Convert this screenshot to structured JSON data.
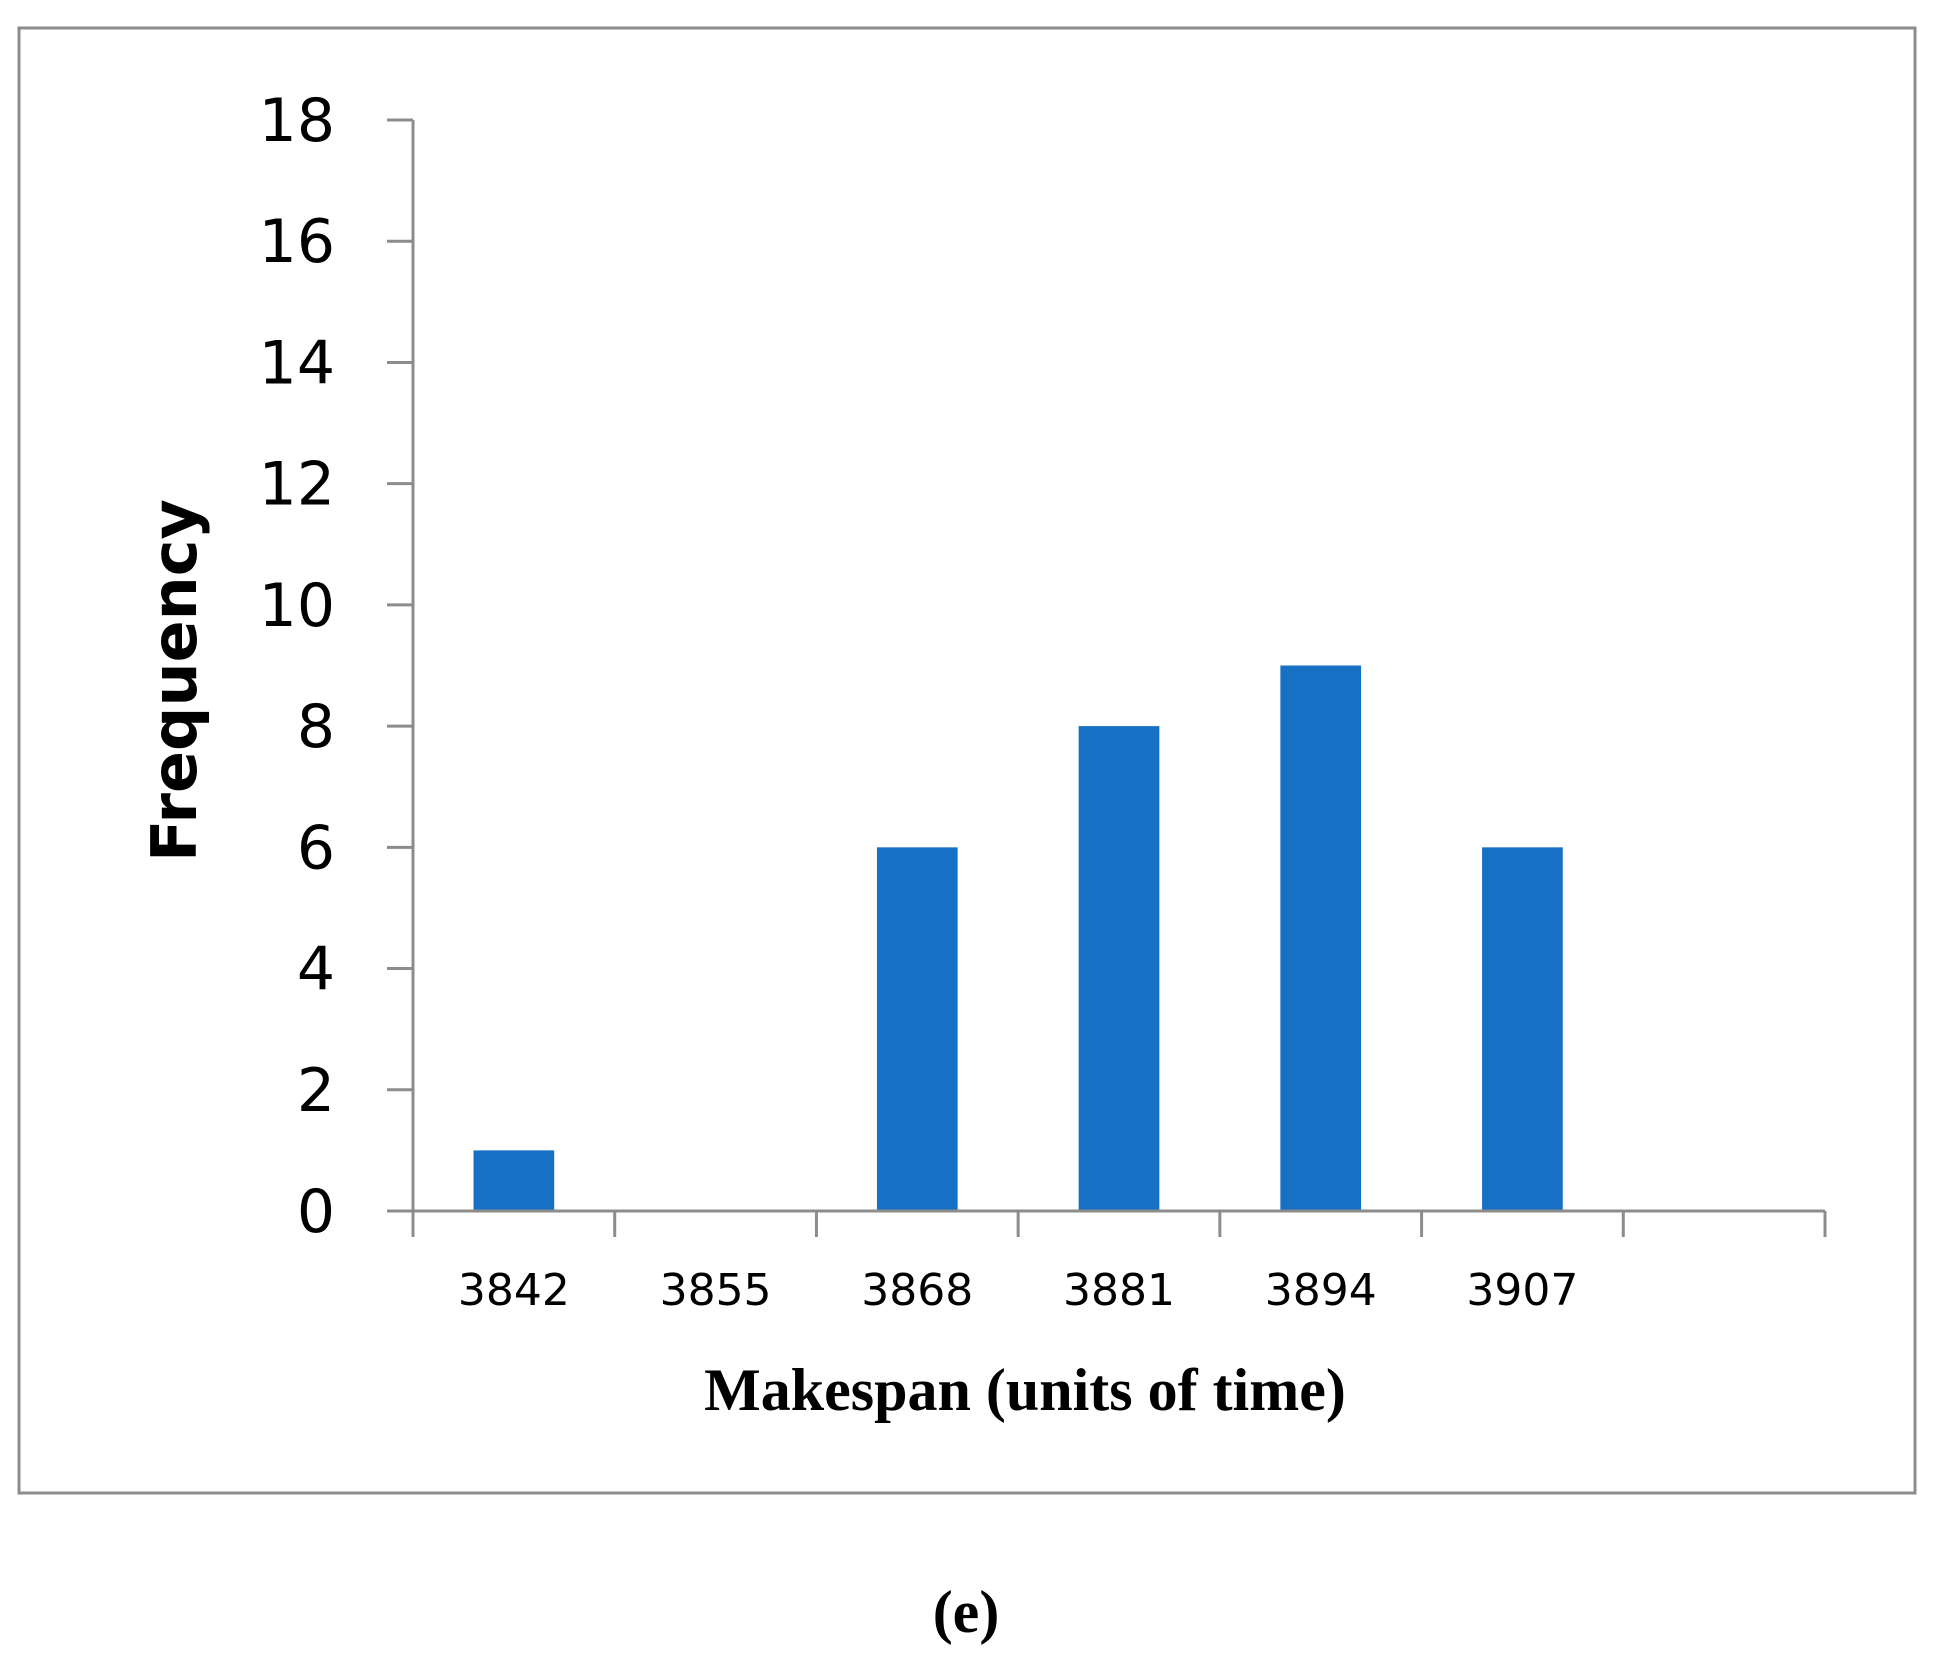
{
  "chart_data": {
    "type": "bar",
    "categories": [
      "3842",
      "3855",
      "3868",
      "3881",
      "3894",
      "3907",
      ""
    ],
    "values": [
      1,
      0,
      6,
      8,
      9,
      6,
      0
    ],
    "xlabel": "Makespan (units of time)",
    "ylabel": "Frequency",
    "ylim": [
      0,
      18
    ],
    "yticks": [
      0,
      2,
      4,
      6,
      8,
      10,
      12,
      14,
      16,
      18
    ],
    "grid": false,
    "legend": "none",
    "bar_color": "#1670C3",
    "axis_color": "#8C8C8C"
  },
  "panel_label": "(e)"
}
